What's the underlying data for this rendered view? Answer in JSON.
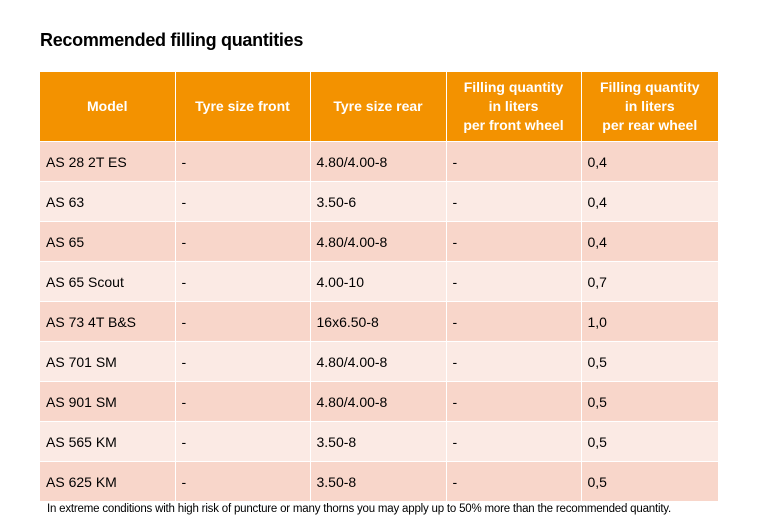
{
  "title": "Recommended filling quantities",
  "table": {
    "header": [
      [
        "Model"
      ],
      [
        "Tyre size front"
      ],
      [
        "Tyre size rear"
      ],
      [
        "Filling quantity",
        "in liters",
        "per front wheel"
      ],
      [
        "Filling quantity",
        "in liters",
        "per rear wheel"
      ]
    ],
    "rows": [
      [
        "AS 28 2T ES",
        "-",
        "4.80/4.00-8",
        "-",
        "0,4"
      ],
      [
        "AS 63",
        "-",
        "3.50-6",
        "-",
        "0,4"
      ],
      [
        "AS 65",
        "-",
        "4.80/4.00-8",
        "-",
        "0,4"
      ],
      [
        "AS 65 Scout",
        "-",
        "4.00-10",
        "-",
        "0,7"
      ],
      [
        "AS 73 4T B&S",
        "-",
        "16x6.50-8",
        "-",
        "1,0"
      ],
      [
        "AS 701 SM",
        "-",
        "4.80/4.00-8",
        "-",
        "0,5"
      ],
      [
        "AS 901 SM",
        "-",
        "4.80/4.00-8",
        "-",
        "0,5"
      ],
      [
        "AS 565 KM",
        "-",
        "3.50-8",
        "-",
        "0,5"
      ],
      [
        "AS 625 KM",
        "-",
        "3.50-8",
        "-",
        "0,5"
      ]
    ]
  },
  "footnote": "In extreme conditions with high risk of puncture or many thorns you may apply up to 50% more than the recommended quantity."
}
